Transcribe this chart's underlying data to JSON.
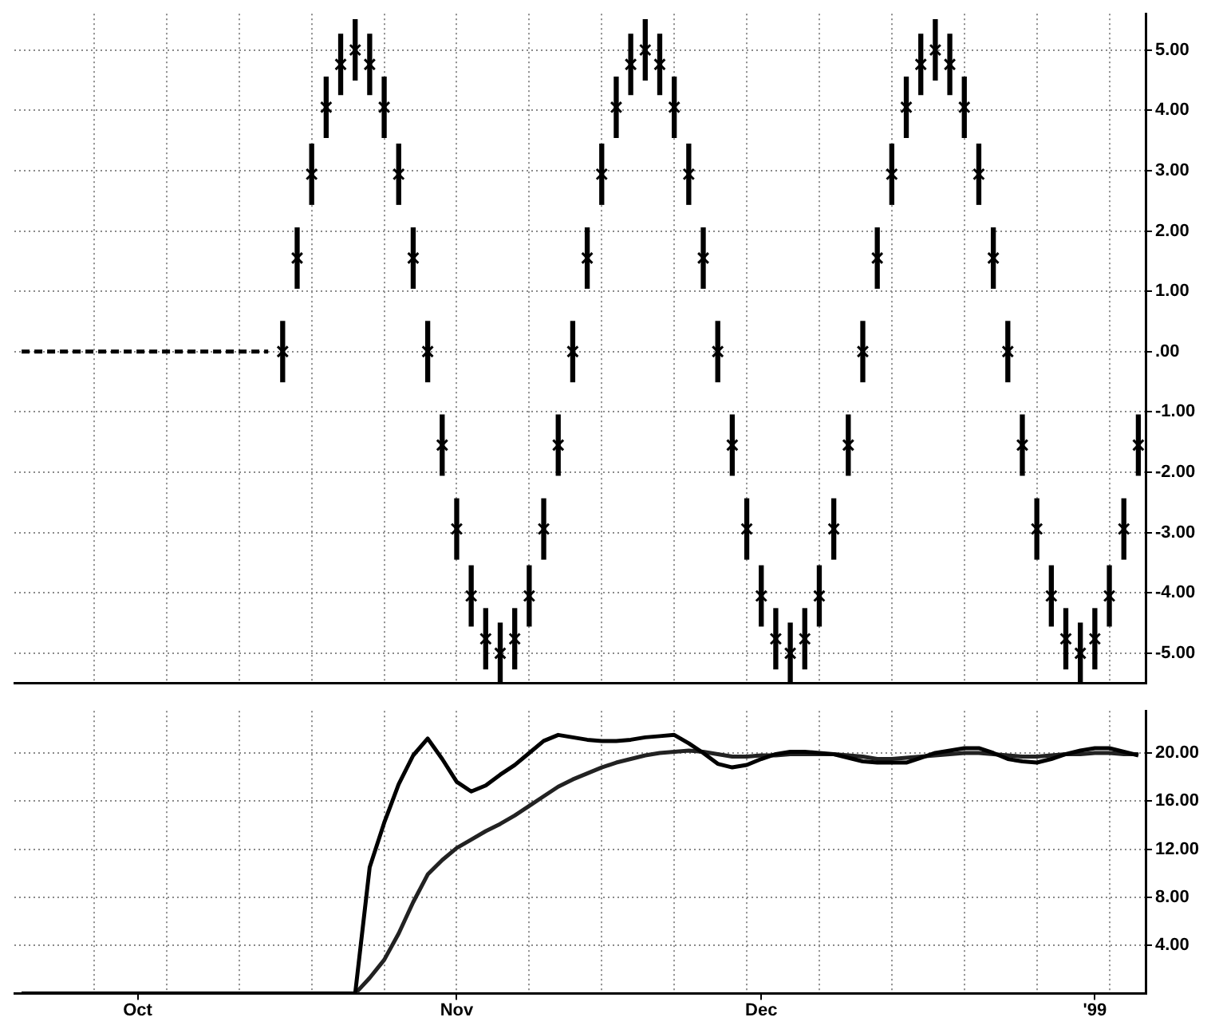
{
  "chart_data": [
    {
      "type": "bar",
      "categories": [
        null,
        null,
        null,
        null,
        null,
        null,
        null,
        null,
        null,
        null,
        null,
        null,
        null,
        null,
        null,
        null,
        null,
        null,
        null,
        null,
        null,
        null,
        null,
        null,
        null,
        null,
        null,
        null,
        null,
        null,
        null,
        null,
        null,
        null,
        null,
        null,
        null,
        null,
        null,
        null,
        null,
        null,
        null,
        null,
        null,
        null,
        null,
        null,
        null,
        null,
        null,
        null,
        null,
        null,
        null,
        null,
        null,
        null,
        null,
        null,
        null,
        null,
        null,
        null,
        null,
        null,
        null,
        null,
        null,
        null,
        null,
        null,
        null,
        null,
        null,
        null,
        null,
        null
      ],
      "series": [
        {
          "type": "bar",
          "color": "#000000",
          "base": [
            null,
            null,
            null,
            null,
            null,
            null,
            null,
            null,
            null,
            null,
            null,
            null,
            null,
            null,
            null,
            null,
            null,
            null,
            -0.5,
            1.05,
            2.44,
            3.55,
            4.26,
            4.5,
            4.26,
            3.55,
            2.44,
            1.05,
            -0.5,
            -2.05,
            -3.44,
            -4.55,
            -5.26,
            -5.5,
            -5.26,
            -4.55,
            -3.44,
            -2.05,
            -0.5,
            1.05,
            2.44,
            3.55,
            4.26,
            4.5,
            4.26,
            3.55,
            2.44,
            1.05,
            -0.5,
            -2.05,
            -3.44,
            -4.55,
            -5.26,
            -5.5,
            -5.26,
            -4.55,
            -3.44,
            -2.05,
            -0.5,
            1.05,
            2.44,
            3.55,
            4.26,
            4.5,
            4.26,
            3.55,
            2.44,
            1.05,
            -0.5,
            -2.05,
            -3.44,
            -4.55,
            -5.26,
            -5.5,
            -5.26,
            -4.55,
            -3.44,
            -2.05
          ],
          "values": [
            null,
            null,
            null,
            null,
            null,
            null,
            null,
            null,
            null,
            null,
            null,
            null,
            null,
            null,
            null,
            null,
            null,
            null,
            1,
            1,
            1,
            1,
            1,
            1,
            1,
            1,
            1,
            1,
            1,
            1,
            1,
            1,
            1,
            1,
            1,
            1,
            1,
            1,
            1,
            1,
            1,
            1,
            1,
            1,
            1,
            1,
            1,
            1,
            1,
            1,
            1,
            1,
            1,
            1,
            1,
            1,
            1,
            1,
            1,
            1,
            1,
            1,
            1,
            1,
            1,
            1,
            1,
            1,
            1,
            1,
            1,
            1,
            1,
            1,
            1,
            1,
            1,
            1
          ]
        },
        {
          "type": "scatter",
          "color": "#000000",
          "marker": "cross",
          "values": [
            null,
            null,
            null,
            null,
            null,
            null,
            null,
            null,
            null,
            null,
            null,
            null,
            null,
            null,
            null,
            null,
            null,
            null,
            0,
            1.55,
            2.94,
            4.05,
            4.76,
            5,
            4.76,
            4.05,
            2.94,
            1.55,
            0,
            -1.55,
            -2.94,
            -4.05,
            -4.76,
            -5,
            -4.76,
            -4.05,
            -2.94,
            -1.55,
            0,
            1.55,
            2.94,
            4.05,
            4.76,
            5,
            4.76,
            4.05,
            2.94,
            1.55,
            0,
            -1.55,
            -2.94,
            -4.05,
            -4.76,
            -5,
            -4.76,
            -4.05,
            -2.94,
            -1.55,
            0,
            1.55,
            2.94,
            4.05,
            4.76,
            5,
            4.76,
            4.05,
            2.94,
            1.55,
            0,
            -1.55,
            -2.94,
            -4.05,
            -4.76,
            -5,
            -4.76,
            -4.05,
            -2.94,
            -1.55
          ]
        },
        {
          "type": "line",
          "color": "#000000",
          "line_style": "dashed",
          "marker": "none",
          "values": [
            0,
            0,
            0,
            0,
            0,
            0,
            0,
            0,
            0,
            0,
            0,
            0,
            0,
            0,
            0,
            0,
            0,
            0,
            null,
            null,
            null,
            null,
            null,
            null,
            null,
            null,
            null,
            null,
            null,
            null,
            null,
            null,
            null,
            null,
            null,
            null,
            null,
            null,
            null,
            null,
            null,
            null,
            null,
            null,
            null,
            null,
            null,
            null,
            null,
            null,
            null,
            null,
            null,
            null,
            null,
            null,
            null,
            null,
            null,
            null,
            null,
            null,
            null,
            null,
            null,
            null,
            null,
            null,
            null,
            null,
            null,
            null,
            null,
            null,
            null,
            null,
            null,
            null
          ]
        }
      ],
      "ylim": [
        -5.5,
        5.6
      ],
      "yticks": [
        {
          "value": 5,
          "label": "5.00"
        },
        {
          "value": 4,
          "label": "4.00"
        },
        {
          "value": 3,
          "label": "3.00"
        },
        {
          "value": 2,
          "label": "2.00"
        },
        {
          "value": 1,
          "label": "1.00"
        },
        {
          "value": 0,
          "label": ".00"
        },
        {
          "value": -1,
          "label": "-1.00"
        },
        {
          "value": -2,
          "label": "-2.00"
        },
        {
          "value": -3,
          "label": "-3.00"
        },
        {
          "value": -4,
          "label": "-4.00"
        },
        {
          "value": -5,
          "label": "-5.00"
        }
      ],
      "grid": true,
      "tick_labels": "y"
    },
    {
      "type": "line",
      "marker": "none",
      "categories": [
        null,
        null,
        null,
        null,
        null,
        null,
        null,
        null,
        "Oct",
        null,
        null,
        null,
        null,
        null,
        null,
        null,
        null,
        null,
        null,
        null,
        null,
        null,
        null,
        null,
        null,
        null,
        null,
        null,
        null,
        null,
        "Nov",
        null,
        null,
        null,
        null,
        null,
        null,
        null,
        null,
        null,
        null,
        null,
        null,
        null,
        null,
        null,
        null,
        null,
        null,
        null,
        null,
        "Dec",
        null,
        null,
        null,
        null,
        null,
        null,
        null,
        null,
        null,
        null,
        null,
        null,
        null,
        null,
        null,
        null,
        null,
        null,
        null,
        null,
        null,
        null,
        "'99",
        null,
        null,
        null
      ],
      "series": [
        {
          "color": "#000000",
          "values": [
            0,
            0,
            0,
            0,
            0,
            0,
            0,
            0,
            0,
            0,
            0,
            0,
            0,
            0,
            0,
            0,
            0,
            0,
            0,
            0,
            0,
            0,
            0,
            0,
            10.5,
            14.2,
            17.4,
            19.8,
            21.2,
            19.5,
            17.6,
            16.8,
            17.3,
            18.2,
            19.0,
            20.0,
            21.0,
            21.5,
            21.3,
            21.1,
            21.0,
            21.0,
            21.1,
            21.3,
            21.4,
            21.5,
            20.8,
            20.0,
            19.1,
            18.8,
            19.0,
            19.5,
            19.9,
            20.1,
            20.1,
            20.0,
            19.9,
            19.6,
            19.3,
            19.2,
            19.2,
            19.2,
            19.6,
            20.0,
            20.2,
            20.4,
            20.4,
            20.0,
            19.5,
            19.3,
            19.2,
            19.5,
            19.9,
            20.2,
            20.4,
            20.4,
            20.1,
            19.8
          ]
        },
        {
          "color": "#222222",
          "values": [
            0,
            0,
            0,
            0,
            0,
            0,
            0,
            0,
            0,
            0,
            0,
            0,
            0,
            0,
            0,
            0,
            0,
            0,
            0,
            0,
            0,
            0,
            0,
            0,
            1.3,
            2.8,
            5.0,
            7.6,
            9.9,
            11.1,
            12.1,
            12.8,
            13.5,
            14.1,
            14.8,
            15.6,
            16.4,
            17.2,
            17.8,
            18.3,
            18.8,
            19.2,
            19.5,
            19.8,
            20.0,
            20.1,
            20.2,
            20.1,
            19.9,
            19.7,
            19.7,
            19.8,
            19.8,
            19.9,
            19.9,
            19.9,
            19.9,
            19.8,
            19.7,
            19.5,
            19.5,
            19.6,
            19.7,
            19.8,
            19.9,
            20.0,
            20.0,
            19.9,
            19.8,
            19.7,
            19.7,
            19.8,
            19.9,
            19.9,
            20.0,
            20.0,
            19.9,
            19.9
          ]
        }
      ],
      "ylim": [
        0,
        23.5
      ],
      "yticks": [
        {
          "value": 20,
          "label": "20.00"
        },
        {
          "value": 16,
          "label": "16.00"
        },
        {
          "value": 12,
          "label": "12.00"
        },
        {
          "value": 8,
          "label": "8.00"
        },
        {
          "value": 4,
          "label": "4.00"
        }
      ],
      "grid": true
    }
  ]
}
